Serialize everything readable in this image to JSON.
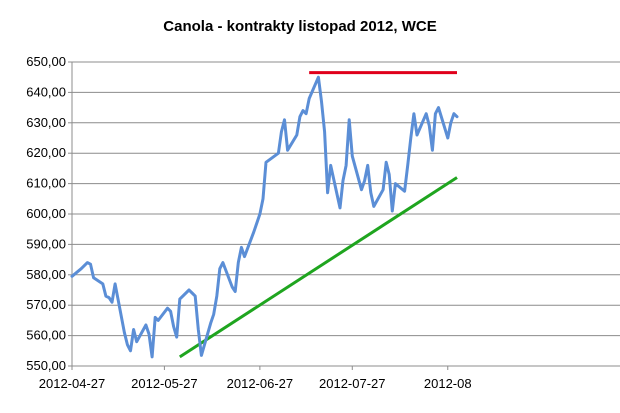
{
  "chart_data": {
    "type": "line",
    "title": "Canola - kontrakty listopad 2012, WCE",
    "xlabel": "",
    "ylabel": "",
    "ylim": [
      550,
      650
    ],
    "y_ticks": [
      "550,00",
      "560,00",
      "570,00",
      "580,00",
      "590,00",
      "600,00",
      "610,00",
      "620,00",
      "630,00",
      "640,00",
      "650,00"
    ],
    "x_tick_labels": [
      "2012-04-27",
      "2012-05-27",
      "2012-06-27",
      "2012-07-27",
      "2012-08"
    ],
    "x_tick_dates": [
      "2012-04-27",
      "2012-05-27",
      "2012-06-27",
      "2012-07-27",
      "2012-08-27"
    ],
    "grid": true,
    "legend": "none",
    "series": [
      {
        "color": "#5b8ed6",
        "x": [
          "2012-04-27",
          "2012-04-30",
          "2012-05-02",
          "2012-05-03",
          "2012-05-04",
          "2012-05-07",
          "2012-05-08",
          "2012-05-09",
          "2012-05-10",
          "2012-05-11",
          "2012-05-14",
          "2012-05-15",
          "2012-05-16",
          "2012-05-17",
          "2012-05-18",
          "2012-05-21",
          "2012-05-22",
          "2012-05-23",
          "2012-05-24",
          "2012-05-25",
          "2012-05-28",
          "2012-05-29",
          "2012-05-30",
          "2012-05-31",
          "2012-06-01",
          "2012-06-04",
          "2012-06-05",
          "2012-06-06",
          "2012-06-07",
          "2012-06-08",
          "2012-06-11",
          "2012-06-12",
          "2012-06-13",
          "2012-06-14",
          "2012-06-15",
          "2012-06-18",
          "2012-06-19",
          "2012-06-20",
          "2012-06-21",
          "2012-06-22",
          "2012-06-25",
          "2012-06-26",
          "2012-06-27",
          "2012-06-28",
          "2012-06-29",
          "2012-07-03",
          "2012-07-04",
          "2012-07-05",
          "2012-07-06",
          "2012-07-09",
          "2012-07-10",
          "2012-07-11",
          "2012-07-12",
          "2012-07-13",
          "2012-07-16",
          "2012-07-17",
          "2012-07-18",
          "2012-07-19",
          "2012-07-20",
          "2012-07-23",
          "2012-07-24",
          "2012-07-25",
          "2012-07-26",
          "2012-07-27",
          "2012-07-30",
          "2012-07-31",
          "2012-08-01",
          "2012-08-02",
          "2012-08-03",
          "2012-08-06",
          "2012-08-07",
          "2012-08-08",
          "2012-08-09",
          "2012-08-10",
          "2012-08-13",
          "2012-08-14",
          "2012-08-15",
          "2012-08-16",
          "2012-08-17",
          "2012-08-20",
          "2012-08-21",
          "2012-08-22",
          "2012-08-23",
          "2012-08-24",
          "2012-08-27",
          "2012-08-28",
          "2012-08-29",
          "2012-08-30"
        ],
        "values": [
          579.5,
          582,
          584,
          583.5,
          579,
          577,
          573,
          572.5,
          571,
          577,
          561,
          557,
          555,
          562,
          558,
          563.5,
          560.5,
          553,
          566,
          565,
          569,
          568,
          563,
          559.5,
          572,
          575,
          574,
          573,
          562,
          553.5,
          564,
          567,
          573,
          582,
          584,
          576,
          574.5,
          584,
          589,
          586,
          594,
          597,
          600,
          605,
          617,
          620,
          627,
          631,
          621,
          626,
          632,
          634,
          633,
          638,
          645,
          637,
          627,
          607,
          616,
          602,
          611,
          616,
          631,
          619,
          608,
          611,
          616,
          607,
          602.5,
          608,
          617,
          613,
          601,
          610,
          607.5,
          616,
          625,
          633,
          626,
          633,
          629,
          621,
          633,
          635,
          625,
          630,
          633,
          632
        ]
      }
    ],
    "annotations": [
      {
        "type": "horizontal-line",
        "color": "#e0001b",
        "y": 646.5,
        "x_start": "2012-07-13",
        "x_end": "2012-08-30"
      },
      {
        "type": "trend-line",
        "color": "#1fa51f",
        "x_start": "2012-06-01",
        "y_start": 553,
        "x_end": "2012-08-30",
        "y_end": 612
      }
    ]
  }
}
